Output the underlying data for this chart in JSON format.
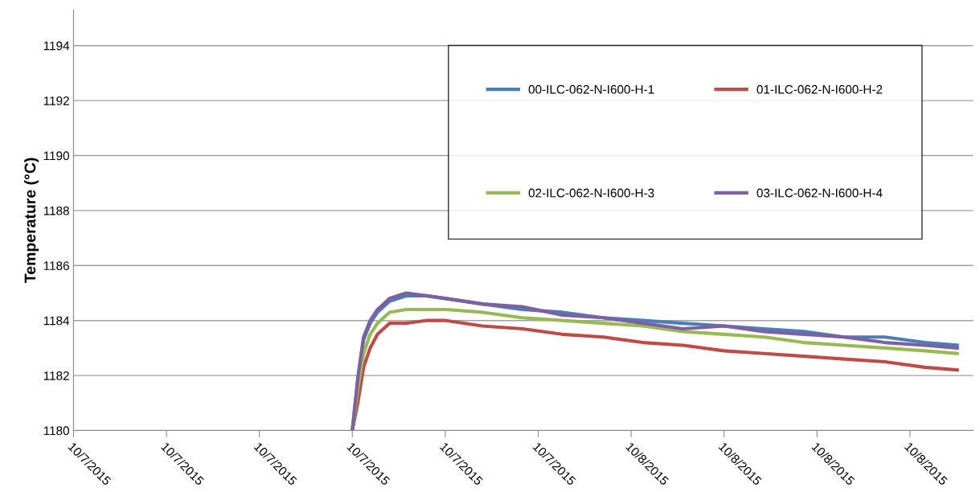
{
  "chart_data": {
    "type": "line",
    "ylabel": "Temperature (°C)",
    "x": [
      "2015-10-07T12:00",
      "2015-10-07T12:14",
      "2015-10-07T12:29",
      "2015-10-07T12:46",
      "2015-10-07T13:05",
      "2015-10-07T13:36",
      "2015-10-07T14:19",
      "2015-10-07T15:10",
      "2015-10-07T16:02",
      "2015-10-07T17:36",
      "2015-10-07T19:19",
      "2015-10-07T21:02",
      "2015-10-07T22:48",
      "2015-10-08T00:31",
      "2015-10-08T02:14",
      "2015-10-08T04:00",
      "2015-10-08T05:43",
      "2015-10-08T07:26",
      "2015-10-08T09:10",
      "2015-10-08T10:55",
      "2015-10-08T12:38",
      "2015-10-08T14:02"
    ],
    "xlim": [
      "2015-10-07T00:00",
      "2015-10-08T14:43"
    ],
    "xticks": [
      {
        "value": "2015-10-07T00:00",
        "label": "10/7/2015"
      },
      {
        "value": "2015-10-07T04:00",
        "label": "10/7/2015"
      },
      {
        "value": "2015-10-07T08:00",
        "label": "10/7/2015"
      },
      {
        "value": "2015-10-07T12:00",
        "label": "10/7/2015"
      },
      {
        "value": "2015-10-07T16:00",
        "label": "10/7/2015"
      },
      {
        "value": "2015-10-07T20:00",
        "label": "10/7/2015"
      },
      {
        "value": "2015-10-08T00:00",
        "label": "10/8/2015"
      },
      {
        "value": "2015-10-08T04:00",
        "label": "10/8/2015"
      },
      {
        "value": "2015-10-08T08:00",
        "label": "10/8/2015"
      },
      {
        "value": "2015-10-08T12:00",
        "label": "10/8/2015"
      }
    ],
    "ylim": [
      1180,
      1195.3
    ],
    "yticks": [
      1180,
      1182,
      1184,
      1186,
      1188,
      1190,
      1192,
      1194
    ],
    "grid": "y",
    "legend": "top right",
    "marker": "none",
    "line_style": "solid",
    "series": [
      {
        "name": "00-ILC-062-N-I600-H-1",
        "color": "#4a7ebb",
        "values": [
          1180,
          1181.8,
          1183.3,
          1183.9,
          1184.3,
          1184.7,
          1184.9,
          1184.9,
          1184.8,
          1184.6,
          1184.4,
          1184.3,
          1184.1,
          1184.0,
          1183.9,
          1183.8,
          1183.7,
          1183.6,
          1183.4,
          1183.4,
          1183.2,
          1183.1
        ]
      },
      {
        "name": "01-ILC-062-N-I600-H-2",
        "color": "#be4b48",
        "values": [
          1180,
          1181.0,
          1182.3,
          1183.0,
          1183.5,
          1183.9,
          1183.9,
          1184.0,
          1184.0,
          1183.8,
          1183.7,
          1183.5,
          1183.4,
          1183.2,
          1183.1,
          1182.9,
          1182.8,
          1182.7,
          1182.6,
          1182.5,
          1182.3,
          1182.2
        ]
      },
      {
        "name": "02-ILC-062-N-I600-H-3",
        "color": "#98b954",
        "values": [
          1180,
          1181.5,
          1182.8,
          1183.5,
          1183.9,
          1184.3,
          1184.4,
          1184.4,
          1184.4,
          1184.3,
          1184.1,
          1184.0,
          1183.9,
          1183.8,
          1183.6,
          1183.5,
          1183.4,
          1183.2,
          1183.1,
          1183.0,
          1182.9,
          1182.8
        ]
      },
      {
        "name": "03-ILC-062-N-I600-H-4",
        "color": "#7d60a0",
        "values": [
          1180,
          1181.9,
          1183.4,
          1184.0,
          1184.4,
          1184.8,
          1185.0,
          1184.9,
          1184.8,
          1184.6,
          1184.5,
          1184.2,
          1184.1,
          1183.9,
          1183.7,
          1183.8,
          1183.6,
          1183.5,
          1183.4,
          1183.2,
          1183.1,
          1183.0
        ]
      }
    ]
  }
}
